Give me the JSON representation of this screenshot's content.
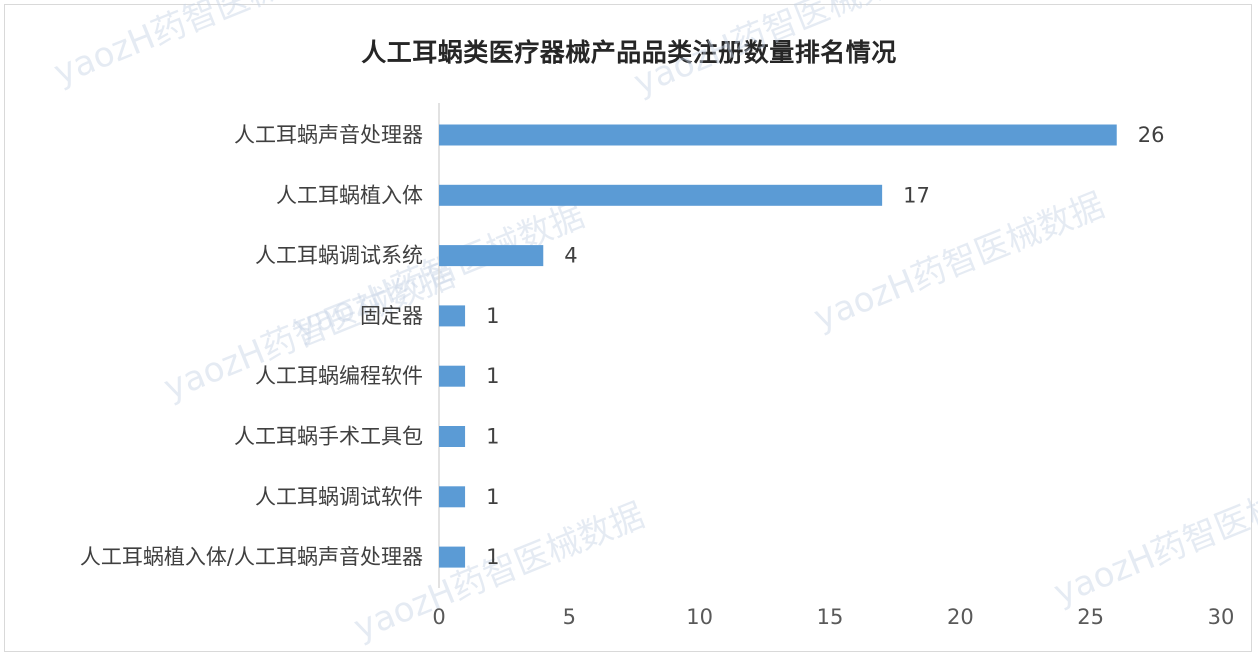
{
  "chart_data": {
    "type": "bar",
    "orientation": "horizontal",
    "title": "人工耳蜗类医疗器械产品品类注册数量排名情况",
    "categories": [
      "人工耳蜗声音处理器",
      "人工耳蜗植入体",
      "人工耳蜗调试系统",
      "固定器",
      "人工耳蜗编程软件",
      "人工耳蜗手术工具包",
      "人工耳蜗调试软件",
      "人工耳蜗植入体/人工耳蜗声音处理器"
    ],
    "values": [
      26,
      17,
      4,
      1,
      1,
      1,
      1,
      1
    ],
    "xlim": [
      0,
      30
    ],
    "xticks": [
      0,
      5,
      10,
      15,
      20,
      25,
      30
    ],
    "grid": false,
    "legend": "none",
    "bar_color": "#5b9bd5"
  },
  "watermark": "yaozH药智医械数据"
}
